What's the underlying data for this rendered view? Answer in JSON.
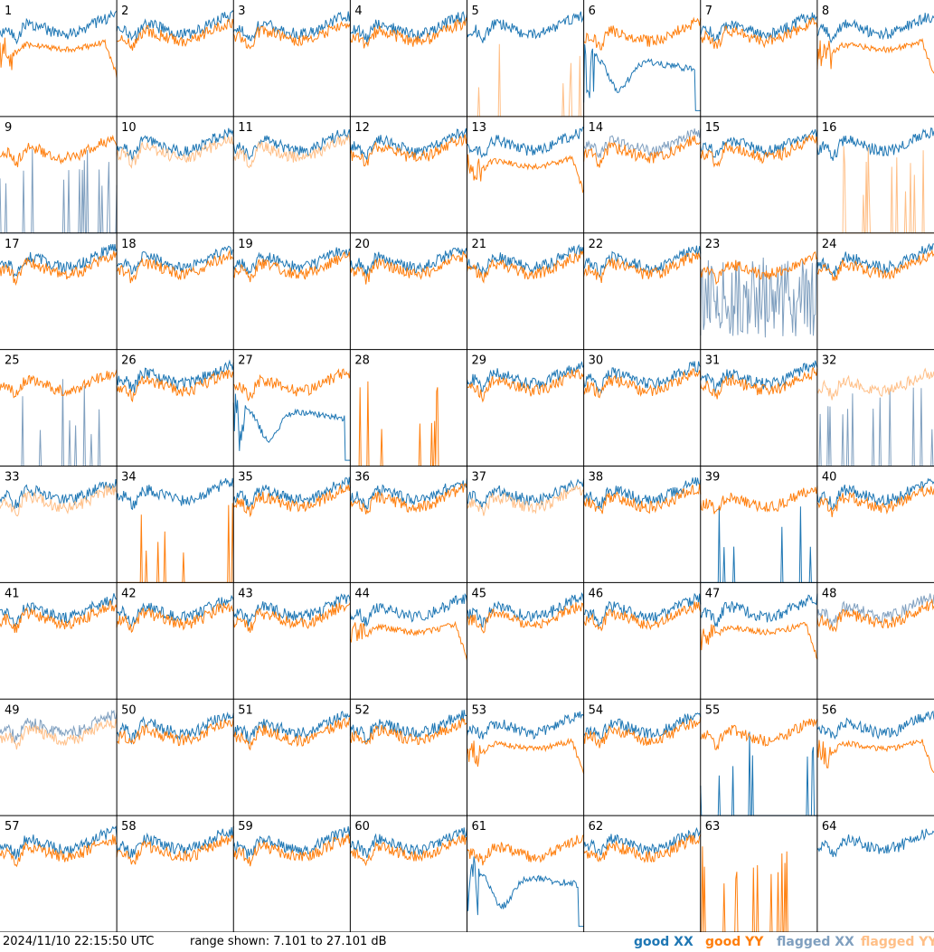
{
  "title": "",
  "footer": {
    "timestamp": "2024/11/10 22:15:50 UTC",
    "range_text": "range shown: 7.101 to 27.101 dB"
  },
  "legend": [
    {
      "label": "good XX",
      "color": "#1f77b4"
    },
    {
      "label": "good YY",
      "color": "#ff7f0e"
    },
    {
      "label": "flagged XX",
      "color": "#7f9fbf"
    },
    {
      "label": "flagged YY",
      "color": "#ffbf87"
    }
  ],
  "colors": {
    "good_xx": "#1f77b4",
    "good_yy": "#ff7f0e",
    "flagged_xx": "#7f9fbf",
    "flagged_yy": "#ffbf87",
    "grid": "#000000"
  },
  "chart_data": {
    "type": "line",
    "layout": "small-multiples",
    "rows": 8,
    "cols": 8,
    "x": "frequency channel",
    "xlabel": "",
    "ylabel": "",
    "ylim": [
      7.101,
      27.101
    ],
    "y_unit": "dB",
    "panels": [
      {
        "id": 1,
        "xx": "good",
        "yy": "good",
        "yy_style": "rolloff"
      },
      {
        "id": 2,
        "xx": "good",
        "yy": "good"
      },
      {
        "id": 3,
        "xx": "good",
        "yy": "good"
      },
      {
        "id": 4,
        "xx": "good",
        "yy": "good"
      },
      {
        "id": 5,
        "xx": "good",
        "yy": "flagged",
        "yy_style": "spikes"
      },
      {
        "id": 6,
        "xx": "good",
        "yy": "good",
        "xx_style": "dip"
      },
      {
        "id": 7,
        "xx": "good",
        "yy": "good"
      },
      {
        "id": 8,
        "xx": "good",
        "yy": "good",
        "yy_style": "rolloff"
      },
      {
        "id": 9,
        "xx": "flagged",
        "yy": "good",
        "xx_style": "spikes"
      },
      {
        "id": 10,
        "xx": "good",
        "yy": "flagged"
      },
      {
        "id": 11,
        "xx": "good",
        "yy": "flagged"
      },
      {
        "id": 12,
        "xx": "good",
        "yy": "good"
      },
      {
        "id": 13,
        "xx": "good",
        "yy": "good",
        "yy_style": "rolloff"
      },
      {
        "id": 14,
        "xx": "flagged",
        "yy": "good"
      },
      {
        "id": 15,
        "xx": "good",
        "yy": "good"
      },
      {
        "id": 16,
        "xx": "good",
        "yy": "flagged",
        "yy_style": "spikes"
      },
      {
        "id": 17,
        "xx": "good",
        "yy": "good"
      },
      {
        "id": 18,
        "xx": "good",
        "yy": "good"
      },
      {
        "id": 19,
        "xx": "good",
        "yy": "good"
      },
      {
        "id": 20,
        "xx": "good",
        "yy": "good"
      },
      {
        "id": 21,
        "xx": "good",
        "yy": "good"
      },
      {
        "id": 22,
        "xx": "good",
        "yy": "good"
      },
      {
        "id": 23,
        "xx": "flagged",
        "yy": "good",
        "xx_style": "noisy"
      },
      {
        "id": 24,
        "xx": "good",
        "yy": "good"
      },
      {
        "id": 25,
        "xx": "flagged",
        "yy": "good",
        "xx_style": "spikes"
      },
      {
        "id": 26,
        "xx": "good",
        "yy": "good"
      },
      {
        "id": 27,
        "xx": "good",
        "yy": "good",
        "xx_style": "dip"
      },
      {
        "id": 28,
        "xx": "none",
        "yy": "good",
        "yy_style": "spikes"
      },
      {
        "id": 29,
        "xx": "good",
        "yy": "good"
      },
      {
        "id": 30,
        "xx": "good",
        "yy": "good"
      },
      {
        "id": 31,
        "xx": "good",
        "yy": "good"
      },
      {
        "id": 32,
        "xx": "flagged",
        "yy": "flagged",
        "xx_style": "spikes"
      },
      {
        "id": 33,
        "xx": "good",
        "yy": "flagged"
      },
      {
        "id": 34,
        "xx": "good",
        "yy": "good",
        "yy_style": "spikes"
      },
      {
        "id": 35,
        "xx": "good",
        "yy": "good"
      },
      {
        "id": 36,
        "xx": "good",
        "yy": "good"
      },
      {
        "id": 37,
        "xx": "good",
        "yy": "flagged"
      },
      {
        "id": 38,
        "xx": "good",
        "yy": "good"
      },
      {
        "id": 39,
        "xx": "good",
        "yy": "good",
        "xx_style": "spikes"
      },
      {
        "id": 40,
        "xx": "good",
        "yy": "good"
      },
      {
        "id": 41,
        "xx": "good",
        "yy": "good"
      },
      {
        "id": 42,
        "xx": "good",
        "yy": "good"
      },
      {
        "id": 43,
        "xx": "good",
        "yy": "good"
      },
      {
        "id": 44,
        "xx": "good",
        "yy": "good",
        "yy_style": "rolloff"
      },
      {
        "id": 45,
        "xx": "good",
        "yy": "good"
      },
      {
        "id": 46,
        "xx": "good",
        "yy": "good"
      },
      {
        "id": 47,
        "xx": "good",
        "yy": "good",
        "yy_style": "rolloff"
      },
      {
        "id": 48,
        "xx": "flagged",
        "yy": "good"
      },
      {
        "id": 49,
        "xx": "flagged",
        "yy": "flagged"
      },
      {
        "id": 50,
        "xx": "good",
        "yy": "good"
      },
      {
        "id": 51,
        "xx": "good",
        "yy": "good"
      },
      {
        "id": 52,
        "xx": "good",
        "yy": "good"
      },
      {
        "id": 53,
        "xx": "good",
        "yy": "good",
        "yy_style": "rolloff"
      },
      {
        "id": 54,
        "xx": "good",
        "yy": "good"
      },
      {
        "id": 55,
        "xx": "good",
        "yy": "good",
        "xx_style": "spikes"
      },
      {
        "id": 56,
        "xx": "good",
        "yy": "good",
        "yy_style": "rolloff"
      },
      {
        "id": 57,
        "xx": "good",
        "yy": "good"
      },
      {
        "id": 58,
        "xx": "good",
        "yy": "good"
      },
      {
        "id": 59,
        "xx": "good",
        "yy": "good"
      },
      {
        "id": 60,
        "xx": "good",
        "yy": "good"
      },
      {
        "id": 61,
        "xx": "good",
        "yy": "good",
        "xx_style": "dip"
      },
      {
        "id": 62,
        "xx": "good",
        "yy": "good"
      },
      {
        "id": 63,
        "xx": "none",
        "yy": "good",
        "yy_style": "spikes"
      },
      {
        "id": 64,
        "xx": "good",
        "yy": "none"
      }
    ]
  }
}
